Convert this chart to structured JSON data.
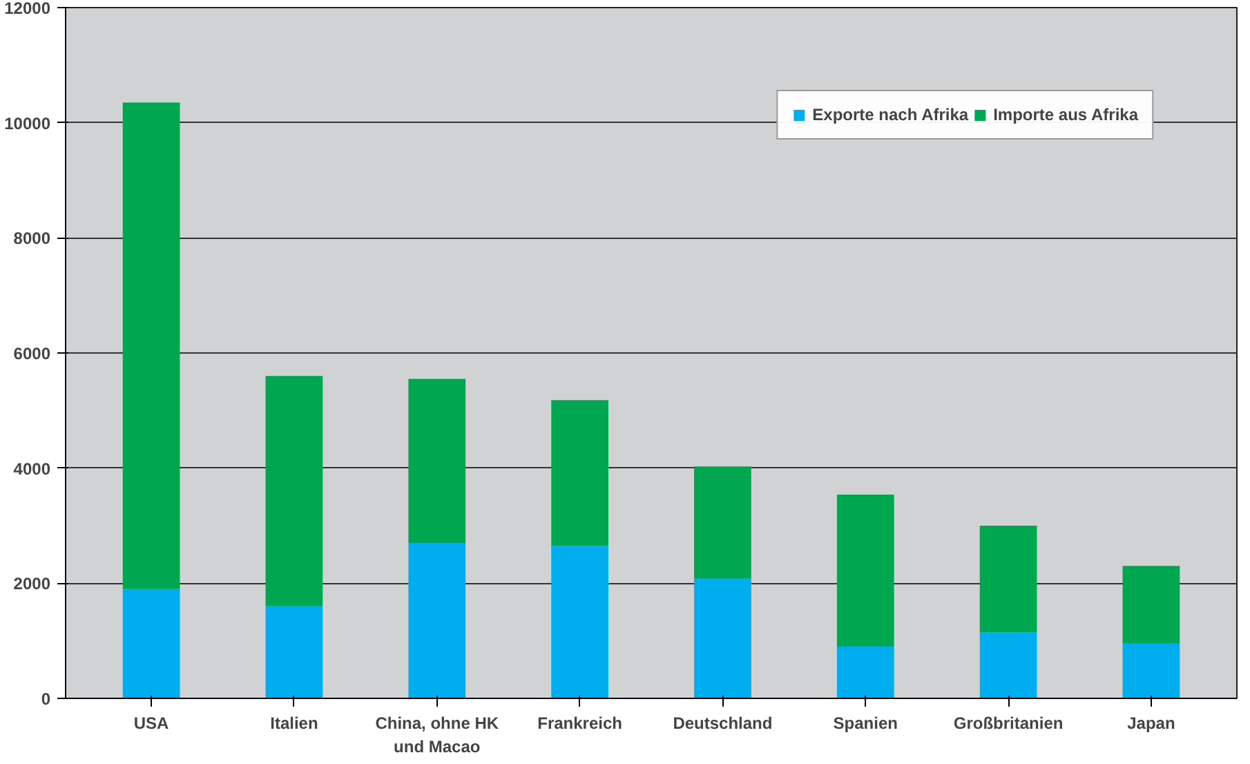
{
  "chart_data": {
    "type": "bar",
    "stacked": true,
    "categories": [
      "USA",
      "Italien",
      "China, ohne HK\nund Macao",
      "Frankreich",
      "Deutschland",
      "Spanien",
      "Großbritanien",
      "Japan"
    ],
    "series": [
      {
        "name": "Exporte nach Afrika",
        "color": "#00adef",
        "values": [
          1900,
          1600,
          2700,
          2650,
          2080,
          900,
          1150,
          950
        ]
      },
      {
        "name": "Importe aus Afrika",
        "color": "#00a650",
        "values": [
          8450,
          4000,
          2850,
          2530,
          1950,
          2640,
          1850,
          1350
        ]
      }
    ],
    "ylim": [
      0,
      12000
    ],
    "yticks": [
      0,
      2000,
      4000,
      6000,
      8000,
      10000,
      12000
    ],
    "grid": "y",
    "legend": "top right"
  }
}
